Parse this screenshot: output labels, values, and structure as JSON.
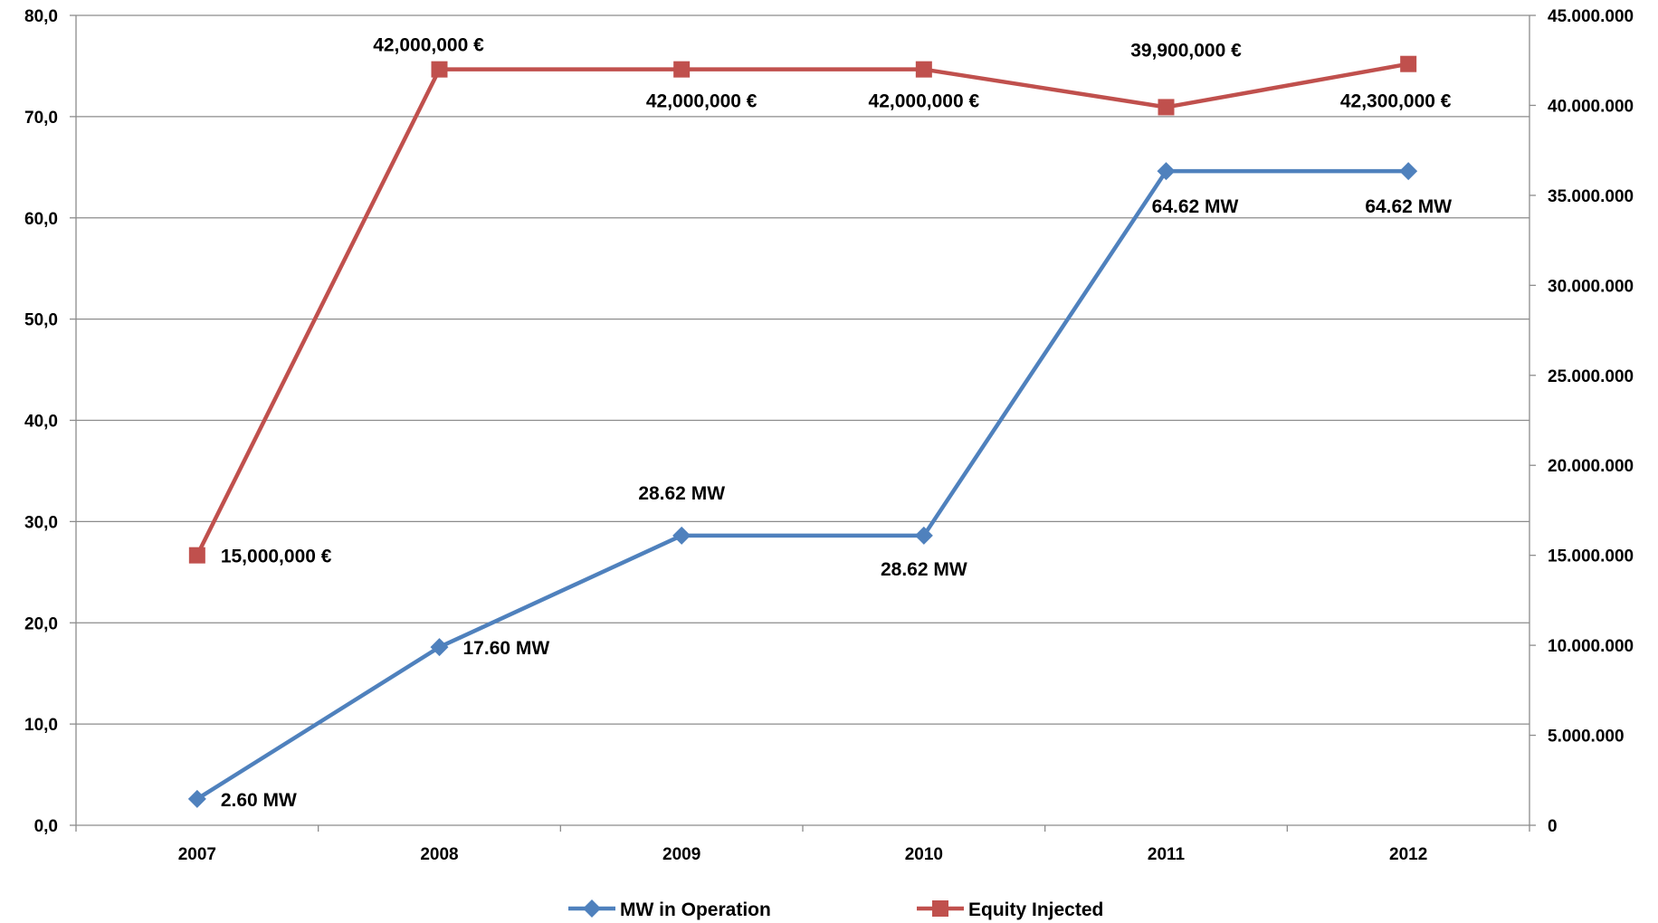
{
  "chart_data": {
    "type": "line",
    "categories": [
      "2007",
      "2008",
      "2009",
      "2010",
      "2011",
      "2012"
    ],
    "y_left": {
      "min": 0,
      "max": 80,
      "step": 10,
      "tick_labels": [
        "0,0",
        "10,0",
        "20,0",
        "30,0",
        "40,0",
        "50,0",
        "60,0",
        "70,0",
        "80,0"
      ]
    },
    "y_right": {
      "min": 0,
      "max": 45000000,
      "step": 5000000,
      "tick_labels": [
        "0",
        "5.000.000",
        "10.000.000",
        "15.000.000",
        "20.000.000",
        "25.000.000",
        "30.000.000",
        "35.000.000",
        "40.000.000",
        "45.000.000"
      ]
    },
    "grid": true,
    "legend_position": "bottom",
    "series": [
      {
        "name": "MW in Operation",
        "axis": "left",
        "color": "#4F81BD",
        "marker": "diamond",
        "values": [
          2.6,
          17.6,
          28.62,
          28.62,
          64.62,
          64.62
        ],
        "labels": [
          "2.60 MW",
          "17.60 MW",
          "28.62 MW",
          "28.62 MW",
          "64.62 MW",
          "64.62 MW"
        ]
      },
      {
        "name": "Equity Injected",
        "axis": "right",
        "color": "#C0504D",
        "marker": "square",
        "values": [
          15000000,
          42000000,
          42000000,
          42000000,
          39900000,
          42300000
        ],
        "labels": [
          "15,000,000 €",
          "42,000,000 €",
          "42,000,000 €",
          "42,000,000 €",
          "39,900,000 €",
          "42,300,000 €"
        ]
      }
    ]
  }
}
